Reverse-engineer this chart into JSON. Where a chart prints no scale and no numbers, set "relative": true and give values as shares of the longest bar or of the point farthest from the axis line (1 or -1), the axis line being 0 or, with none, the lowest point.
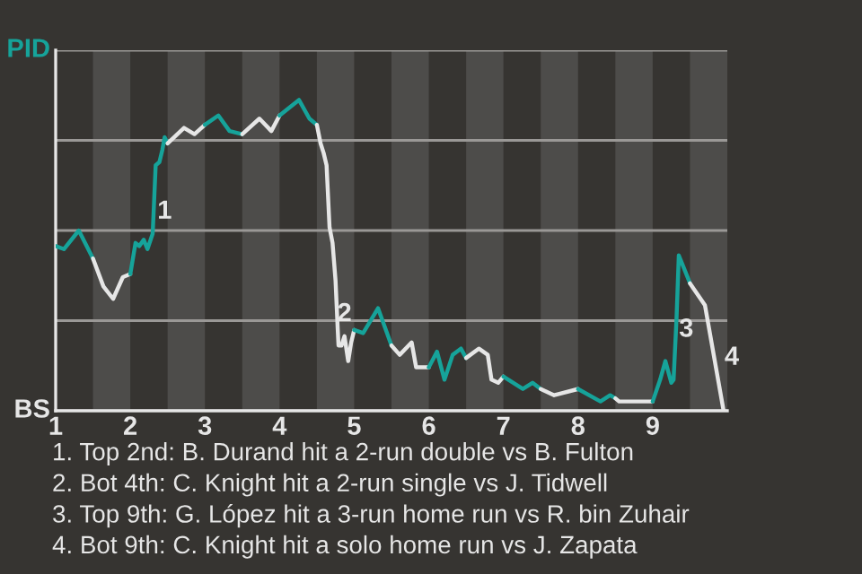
{
  "chart_data": {
    "type": "line",
    "relative": true,
    "xlim": [
      1,
      10
    ],
    "xticks": [
      1,
      2,
      3,
      4,
      5,
      6,
      7,
      8,
      9
    ],
    "grid": "y",
    "series": [
      {
        "color": "#16a39a",
        "x": [
          1,
          1.11,
          1.31,
          1.5
        ],
        "values": [
          0.53,
          0.52,
          0.58,
          0.49
        ]
      },
      {
        "color": "#e6e6e6",
        "x": [
          1.5,
          1.64,
          1.77,
          1.9,
          2
        ],
        "values": [
          0.49,
          0.4,
          0.36,
          0.43,
          0.44
        ]
      },
      {
        "color": "#16a39a",
        "x": [
          2,
          2.07,
          2.12,
          2.18,
          2.23,
          2.3,
          2.34,
          2.39,
          2.43,
          2.46,
          2.5
        ],
        "values": [
          0.44,
          0.54,
          0.53,
          0.55,
          0.52,
          0.57,
          0.79,
          0.8,
          0.84,
          0.88,
          0.86
        ]
      },
      {
        "color": "#e6e6e6",
        "x": [
          2.5,
          2.72,
          2.86,
          3
        ],
        "values": [
          0.86,
          0.91,
          0.89,
          0.92
        ]
      },
      {
        "color": "#16a39a",
        "x": [
          3,
          3.18,
          3.33,
          3.5
        ],
        "values": [
          0.92,
          0.95,
          0.9,
          0.89
        ]
      },
      {
        "color": "#e6e6e6",
        "x": [
          3.5,
          3.73,
          3.89,
          4
        ],
        "values": [
          0.89,
          0.94,
          0.9,
          0.95
        ]
      },
      {
        "color": "#16a39a",
        "x": [
          4,
          4.26,
          4.4,
          4.5
        ],
        "values": [
          0.95,
          1,
          0.94,
          0.92
        ]
      },
      {
        "color": "#e6e6e6",
        "x": [
          4.5,
          4.55,
          4.59,
          4.63,
          4.67,
          4.71,
          4.75,
          4.78,
          4.79,
          4.83,
          4.87,
          4.92,
          4.96,
          5
        ],
        "values": [
          0.92,
          0.86,
          0.83,
          0.79,
          0.59,
          0.54,
          0.42,
          0.26,
          0.21,
          0.21,
          0.24,
          0.16,
          0.22,
          0.26
        ]
      },
      {
        "color": "#16a39a",
        "x": [
          5,
          5.12,
          5.32,
          5.5
        ],
        "values": [
          0.26,
          0.25,
          0.33,
          0.21
        ]
      },
      {
        "color": "#e6e6e6",
        "x": [
          5.5,
          5.61,
          5.77,
          5.83,
          6
        ],
        "values": [
          0.21,
          0.18,
          0.22,
          0.14,
          0.14
        ]
      },
      {
        "color": "#16a39a",
        "x": [
          6,
          6.11,
          6.21,
          6.32,
          6.43,
          6.5
        ],
        "values": [
          0.14,
          0.19,
          0.1,
          0.18,
          0.2,
          0.17
        ]
      },
      {
        "color": "#e6e6e6",
        "x": [
          6.5,
          6.67,
          6.79,
          6.84,
          6.93,
          7
        ],
        "values": [
          0.17,
          0.2,
          0.18,
          0.1,
          0.09,
          0.11
        ]
      },
      {
        "color": "#16a39a",
        "x": [
          7,
          7.26,
          7.39,
          7.5
        ],
        "values": [
          0.11,
          0.07,
          0.09,
          0.07
        ]
      },
      {
        "color": "#e6e6e6",
        "x": [
          7.5,
          7.68,
          8
        ],
        "values": [
          0.07,
          0.05,
          0.07
        ]
      },
      {
        "color": "#16a39a",
        "x": [
          8,
          8.3,
          8.43,
          8.5
        ],
        "values": [
          0.07,
          0.03,
          0.05,
          0.04
        ]
      },
      {
        "color": "#e6e6e6",
        "x": [
          8.5,
          8.55,
          8.75,
          9
        ],
        "values": [
          0.04,
          0.03,
          0.03,
          0.03
        ]
      },
      {
        "color": "#16a39a",
        "x": [
          9,
          9.1,
          9.17,
          9.25,
          9.28,
          9.32,
          9.35,
          9.5
        ],
        "values": [
          0.03,
          0.1,
          0.16,
          0.09,
          0.1,
          0.3,
          0.5,
          0.41
        ]
      },
      {
        "color": "#e6e6e6",
        "x": [
          9.5,
          9.7,
          9.95
        ],
        "values": [
          0.41,
          0.34,
          0
        ]
      }
    ],
    "bands": [
      {
        "axis": "x",
        "from": 1.5,
        "to": 2,
        "color": "#4d4c4a"
      },
      {
        "axis": "x",
        "from": 2.5,
        "to": 3,
        "color": "#4d4c4a"
      },
      {
        "axis": "x",
        "from": 3.5,
        "to": 4,
        "color": "#4d4c4a"
      },
      {
        "axis": "x",
        "from": 4.5,
        "to": 5,
        "color": "#4d4c4a"
      },
      {
        "axis": "x",
        "from": 5.5,
        "to": 6,
        "color": "#4d4c4a"
      },
      {
        "axis": "x",
        "from": 6.5,
        "to": 7,
        "color": "#4d4c4a"
      },
      {
        "axis": "x",
        "from": 7.5,
        "to": 8,
        "color": "#4d4c4a"
      },
      {
        "axis": "x",
        "from": 8.5,
        "to": 9,
        "color": "#4d4c4a"
      },
      {
        "axis": "x",
        "from": 9.5,
        "to": 10,
        "color": "#4d4c4a"
      }
    ],
    "annotations": [
      "PID",
      "BS",
      {
        "text": "1",
        "x": 2.46,
        "y": 0.64
      },
      {
        "text": "2",
        "x": 4.87,
        "y": 0.31
      },
      {
        "text": "3",
        "x": 9.45,
        "y": 0.26
      },
      {
        "text": "4",
        "x": 10.06,
        "y": 0.17
      },
      "1. Top 2nd: B. Durand hit a 2-run double vs B. Fulton",
      "2. Bot 4th: C. Knight hit a 2-run single vs J. Tidwell",
      "3. Top 9th: G. López hit a 3-run home run vs R. bin Zuhair",
      "4. Bot 9th: C. Knight hit a solo home run vs J. Zapata"
    ],
    "legend": false
  }
}
